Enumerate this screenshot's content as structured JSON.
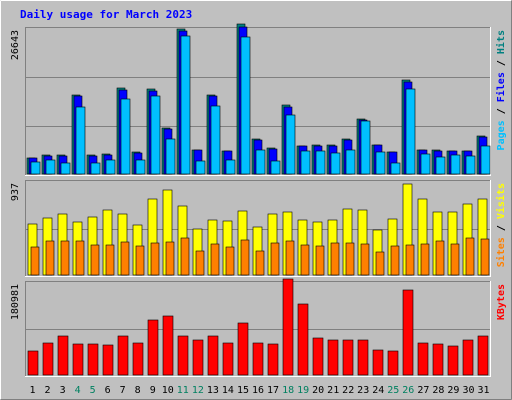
{
  "chart_data": {
    "type": "bar",
    "title": "Daily usage for March 2023",
    "days": [
      "1",
      "2",
      "3",
      "4",
      "5",
      "6",
      "7",
      "8",
      "9",
      "10",
      "11",
      "12",
      "13",
      "14",
      "15",
      "16",
      "17",
      "18",
      "19",
      "20",
      "21",
      "22",
      "23",
      "24",
      "25",
      "26",
      "27",
      "28",
      "29",
      "30",
      "31"
    ],
    "weekend_days": [
      "4",
      "5",
      "11",
      "12",
      "18",
      "19",
      "25",
      "26"
    ],
    "grid": true,
    "colors": {
      "background": "#c0c0c0",
      "plot_background": "#bebebe",
      "title": "#0000ff",
      "weekday_label": "#000000",
      "weekend_label": "#008060",
      "pages": "#00c0ff",
      "files": "#0000ff",
      "hits": "#008080",
      "visits": "#ffff00",
      "sites": "#ff8000",
      "kbytes": "#ff0000"
    },
    "panels": [
      {
        "id": "traffic",
        "max_label": "26643",
        "ymax": 26643,
        "legend": [
          {
            "text": "Pages",
            "color": "#00c0ff"
          },
          {
            "text": " / ",
            "color": "#000000"
          },
          {
            "text": "Files",
            "color": "#0000ff"
          },
          {
            "text": " / ",
            "color": "#000000"
          },
          {
            "text": "Hits",
            "color": "#008080"
          }
        ],
        "series": [
          {
            "name": "Hits",
            "color": "#008080",
            "values": [
              3000,
              3400,
              3400,
              14600,
              3400,
              3600,
              15800,
              4000,
              15600,
              8400,
              26700,
              4500,
              14600,
              4300,
              27500,
              6400,
              4700,
              12600,
              5200,
              5300,
              5300,
              6400,
              10100,
              5400,
              4100,
              17200,
              4500,
              4400,
              4300,
              4300,
              6900
            ]
          },
          {
            "name": "Files",
            "color": "#0000ff",
            "values": [
              2900,
              3300,
              3300,
              14300,
              3300,
              3500,
              15500,
              3900,
              15300,
              8200,
              26300,
              4400,
              14300,
              4200,
              27100,
              6300,
              4600,
              12300,
              5100,
              5200,
              5200,
              6300,
              9900,
              5300,
              4000,
              16900,
              4400,
              4300,
              4200,
              4200,
              6800
            ]
          },
          {
            "name": "Pages",
            "color": "#00c0ff",
            "values": [
              2200,
              2500,
              2100,
              12400,
              2000,
              2500,
              13700,
              2500,
              14400,
              6500,
              25300,
              2400,
              12500,
              2500,
              25200,
              4400,
              2400,
              10900,
              4300,
              4300,
              3800,
              4500,
              9800,
              4000,
              2000,
              15600,
              3600,
              3200,
              3400,
              3300,
              5100
            ]
          }
        ]
      },
      {
        "id": "visits",
        "max_label": "937",
        "ymax": 937,
        "legend": [
          {
            "text": "Sites",
            "color": "#ff8000"
          },
          {
            "text": " / ",
            "color": "#000000"
          },
          {
            "text": "Visits",
            "color": "#ffff00"
          }
        ],
        "series": [
          {
            "name": "Visits",
            "color": "#ffff00",
            "values": [
              510,
              570,
              610,
              530,
              580,
              650,
              610,
              500,
              770,
              860,
              700,
              460,
              550,
              540,
              640,
              480,
              610,
              630,
              550,
              530,
              550,
              660,
              650,
              450,
              560,
              920,
              770,
              630,
              630,
              720,
              770
            ]
          },
          {
            "name": "Sites",
            "color": "#ff8000",
            "values": [
              280,
              340,
              340,
              340,
              300,
              300,
              330,
              290,
              320,
              330,
              370,
              240,
              310,
              280,
              350,
              240,
              320,
              340,
              300,
              290,
              320,
              320,
              310,
              230,
              290,
              300,
              310,
              340,
              310,
              370,
              360
            ]
          }
        ]
      },
      {
        "id": "kbytes",
        "max_label": "180981",
        "ymax": 180981,
        "legend": [
          {
            "text": "KBytes",
            "color": "#ff0000"
          }
        ],
        "series": [
          {
            "name": "KBytes",
            "color": "#ff0000",
            "values": [
              47000,
              63000,
              77000,
              61000,
              61000,
              59000,
              77000,
              63000,
              108000,
              116000,
              77000,
              68000,
              77000,
              63000,
              103000,
              63000,
              60000,
              189000,
              140000,
              72000,
              68000,
              68000,
              68000,
              50000,
              47000,
              167000,
              63000,
              60000,
              57000,
              68000,
              77000
            ]
          }
        ]
      }
    ]
  }
}
